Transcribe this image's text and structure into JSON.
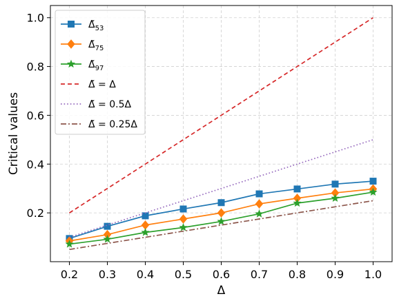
{
  "chart_data": {
    "type": "line",
    "title": "",
    "xlabel": "Δ",
    "ylabel": "Critical values",
    "xlim": [
      0.15,
      1.05
    ],
    "ylim": [
      0.0,
      1.05
    ],
    "x": [
      0.2,
      0.3,
      0.4,
      0.5,
      0.6,
      0.7,
      0.8,
      0.9,
      1.0
    ],
    "x_ticks": [
      "0.2",
      "0.3",
      "0.4",
      "0.5",
      "0.6",
      "0.7",
      "0.8",
      "0.9",
      "1.0"
    ],
    "y_ticks": [
      "0.2",
      "0.4",
      "0.6",
      "0.8",
      "1.0"
    ],
    "y_tick_values": [
      0.2,
      0.4,
      0.6,
      0.8,
      1.0
    ],
    "grid": true,
    "legend_position": "top-left",
    "series": [
      {
        "name": "Δ̃53",
        "base": "Δ̃",
        "sub": "53",
        "color": "#1f77b4",
        "marker": "square",
        "linestyle": "solid",
        "values": [
          0.095,
          0.145,
          0.188,
          0.216,
          0.242,
          0.278,
          0.298,
          0.318,
          0.33
        ]
      },
      {
        "name": "Δ̃75",
        "base": "Δ̃",
        "sub": "75",
        "color": "#ff7f0e",
        "marker": "diamond",
        "linestyle": "solid",
        "values": [
          0.085,
          0.111,
          0.15,
          0.175,
          0.2,
          0.237,
          0.26,
          0.282,
          0.298
        ]
      },
      {
        "name": "Δ̃97",
        "base": "Δ̃",
        "sub": "97",
        "color": "#2ca02c",
        "marker": "star",
        "linestyle": "solid",
        "values": [
          0.072,
          0.092,
          0.12,
          0.14,
          0.165,
          0.196,
          0.24,
          0.26,
          0.285
        ]
      },
      {
        "name": "Δ̃ = Δ",
        "color": "#d62728",
        "marker": "none",
        "linestyle": "dashed",
        "values": [
          0.2,
          0.3,
          0.4,
          0.5,
          0.6,
          0.7,
          0.8,
          0.9,
          1.0
        ]
      },
      {
        "name": "Δ̃ = 0.5Δ",
        "color": "#9467bd",
        "marker": "none",
        "linestyle": "dotted",
        "values": [
          0.1,
          0.15,
          0.2,
          0.25,
          0.3,
          0.35,
          0.4,
          0.45,
          0.5
        ]
      },
      {
        "name": "Δ̃ = 0.25Δ",
        "color": "#8c564b",
        "marker": "none",
        "linestyle": "dashdot",
        "values": [
          0.05,
          0.075,
          0.1,
          0.125,
          0.15,
          0.175,
          0.2,
          0.225,
          0.25
        ]
      }
    ]
  }
}
